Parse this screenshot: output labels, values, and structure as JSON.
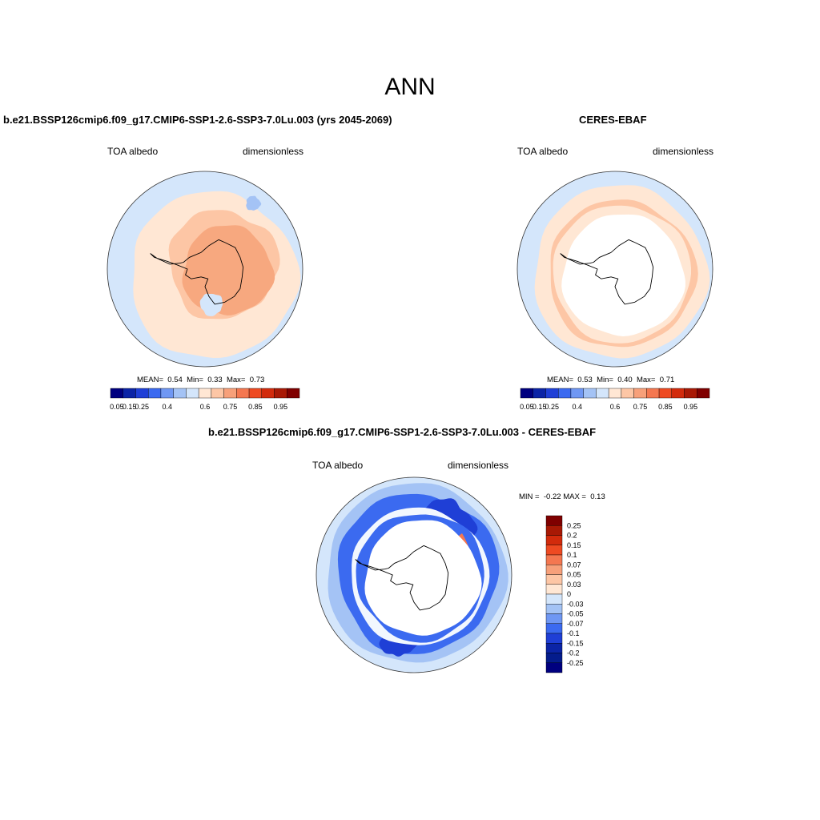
{
  "main_title": "ANN",
  "chart_data": [
    {
      "type": "heatmap",
      "projection": "south-polar-stereographic",
      "title": "b.e21.BSSP126cmip6.f09_g17.CMIP6-SSP1-2.6-SSP3-7.0Lu.003 (yrs 2045-2069)",
      "left_label": "TOA albedo",
      "right_label": "dimensionless",
      "stats": {
        "mean": "0.54",
        "min": "0.33",
        "max": "0.73"
      },
      "stats_text": {
        "mean_label": "MEAN=",
        "min_label": "Min=",
        "max_label": "Max="
      },
      "colorbar": {
        "orientation": "horizontal",
        "tick_labels": [
          "0.05",
          "0.15",
          "0.25",
          "0.4",
          "0.6",
          "0.75",
          "0.85",
          "0.95"
        ],
        "colors": [
          "#00007f",
          "#0b24a6",
          "#1f3fd6",
          "#3b6af0",
          "#6f97f3",
          "#a4c3f5",
          "#d4e6fb",
          "#ffe7d4",
          "#fdc6a5",
          "#f7a07a",
          "#f47750",
          "#ee4a22",
          "#d22b0c",
          "#a81905",
          "#7f0000"
        ]
      },
      "map_colors": {
        "ocean": "#d4e6fb",
        "ice_edge": "#ffe7d4",
        "ring": "#fdc6a5",
        "interior": "#f7a87f",
        "patch": "#d4e6fb",
        "blue_patch": "#a4c3f5"
      }
    },
    {
      "type": "heatmap",
      "projection": "south-polar-stereographic",
      "title": "CERES-EBAF",
      "left_label": "TOA albedo",
      "right_label": "dimensionless",
      "stats": {
        "mean": "0.53",
        "min": "0.40",
        "max": "0.71"
      },
      "stats_text": {
        "mean_label": "MEAN=",
        "min_label": "Min=",
        "max_label": "Max="
      },
      "colorbar": {
        "orientation": "horizontal",
        "tick_labels": [
          "0.05",
          "0.15",
          "0.25",
          "0.4",
          "0.6",
          "0.75",
          "0.85",
          "0.95"
        ],
        "colors": [
          "#00007f",
          "#0b24a6",
          "#1f3fd6",
          "#3b6af0",
          "#6f97f3",
          "#a4c3f5",
          "#d4e6fb",
          "#ffe7d4",
          "#fdc6a5",
          "#f7a07a",
          "#f47750",
          "#ee4a22",
          "#d22b0c",
          "#a81905",
          "#7f0000"
        ]
      },
      "map_colors": {
        "ocean": "#d4e6fb",
        "ice_edge": "#ffe7d4",
        "ring": "#fdc6a5",
        "interior": "#ffffff"
      }
    },
    {
      "type": "heatmap",
      "projection": "south-polar-stereographic",
      "title": "b.e21.BSSP126cmip6.f09_g17.CMIP6-SSP1-2.6-SSP3-7.0Lu.003 - CERES-EBAF",
      "left_label": "TOA albedo",
      "right_label": "dimensionless",
      "range_text": {
        "min_label": "MIN =",
        "min": "-0.22",
        "max_label": "MAX =",
        "max": "0.13"
      },
      "colorbar": {
        "orientation": "vertical",
        "tick_labels": [
          "0.25",
          "0.2",
          "0.15",
          "0.1",
          "0.07",
          "0.05",
          "0.03",
          "0",
          "-0.03",
          "-0.05",
          "-0.07",
          "-0.1",
          "-0.15",
          "-0.2",
          "-0.25"
        ],
        "colors": [
          "#7f0000",
          "#a81905",
          "#d22b0c",
          "#ee4a22",
          "#f47750",
          "#f7a07a",
          "#fdc6a5",
          "#ffe7d4",
          "#d4e6fb",
          "#a4c3f5",
          "#6f97f3",
          "#3b6af0",
          "#1f3fd6",
          "#0b24a6",
          "#041c8c",
          "#00007f"
        ]
      },
      "map_colors": {
        "ocean": "#d4e6fb",
        "band_light": "#a4c3f5",
        "band_mid": "#3b6af0",
        "band_dark": "#1f3fd6",
        "white_ring": "#f2f7fe",
        "red": "#f47750",
        "interior": "#ffffff"
      }
    }
  ]
}
